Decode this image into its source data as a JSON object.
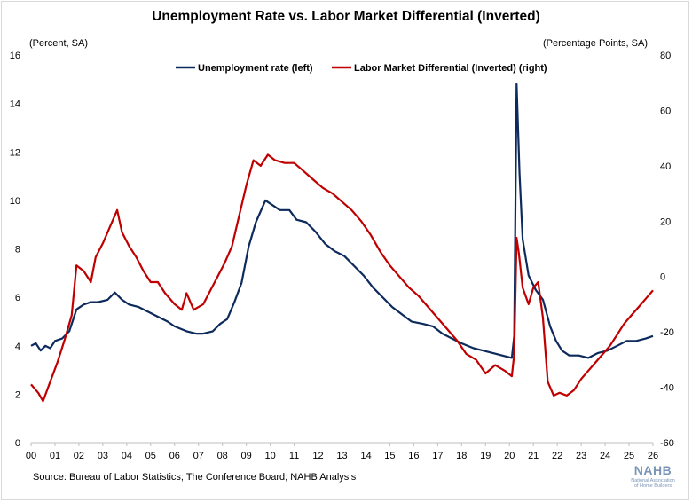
{
  "chart_data": {
    "type": "line",
    "title": "Unemployment Rate vs. Labor Market Differential (Inverted)",
    "ylabel_left": "(Percent, SA)",
    "ylabel_right": "(Percentage Points, SA)",
    "xlabel": "",
    "ylim_left": [
      0,
      16
    ],
    "ylim_right": [
      -60,
      80
    ],
    "yticks_left": [
      "0",
      "2",
      "4",
      "6",
      "8",
      "10",
      "12",
      "14",
      "16"
    ],
    "yticks_right": [
      "-60",
      "-40",
      "-20",
      "0",
      "20",
      "40",
      "60",
      "80"
    ],
    "x_tick_labels": [
      "00",
      "01",
      "02",
      "03",
      "04",
      "05",
      "06",
      "07",
      "08",
      "09",
      "10",
      "11",
      "12",
      "13",
      "14",
      "15",
      "16",
      "17",
      "18",
      "19",
      "20",
      "21",
      "22",
      "23",
      "24",
      "25",
      "26"
    ],
    "xlim": [
      2000,
      2026
    ],
    "legend_position": "top-center",
    "series": [
      {
        "name": "Unemployment rate (left)",
        "axis": "left",
        "color": "#0d2a5c",
        "points": [
          [
            2000,
            4.0
          ],
          [
            2000.2,
            4.1
          ],
          [
            2000.4,
            3.8
          ],
          [
            2000.6,
            4.0
          ],
          [
            2000.8,
            3.9
          ],
          [
            2001,
            4.2
          ],
          [
            2001.3,
            4.3
          ],
          [
            2001.6,
            4.6
          ],
          [
            2001.9,
            5.5
          ],
          [
            2002.2,
            5.7
          ],
          [
            2002.5,
            5.8
          ],
          [
            2002.8,
            5.8
          ],
          [
            2003.2,
            5.9
          ],
          [
            2003.5,
            6.2
          ],
          [
            2003.8,
            5.9
          ],
          [
            2004.1,
            5.7
          ],
          [
            2004.5,
            5.6
          ],
          [
            2004.9,
            5.4
          ],
          [
            2005.3,
            5.2
          ],
          [
            2005.7,
            5.0
          ],
          [
            2006,
            4.8
          ],
          [
            2006.5,
            4.6
          ],
          [
            2006.9,
            4.5
          ],
          [
            2007.2,
            4.5
          ],
          [
            2007.6,
            4.6
          ],
          [
            2007.9,
            4.9
          ],
          [
            2008.2,
            5.1
          ],
          [
            2008.5,
            5.8
          ],
          [
            2008.8,
            6.6
          ],
          [
            2009.1,
            8.1
          ],
          [
            2009.4,
            9.1
          ],
          [
            2009.8,
            10.0
          ],
          [
            2010.1,
            9.8
          ],
          [
            2010.4,
            9.6
          ],
          [
            2010.8,
            9.6
          ],
          [
            2011.1,
            9.2
          ],
          [
            2011.5,
            9.1
          ],
          [
            2011.9,
            8.7
          ],
          [
            2012.3,
            8.2
          ],
          [
            2012.7,
            7.9
          ],
          [
            2013.1,
            7.7
          ],
          [
            2013.5,
            7.3
          ],
          [
            2013.9,
            6.9
          ],
          [
            2014.3,
            6.4
          ],
          [
            2014.7,
            6.0
          ],
          [
            2015.1,
            5.6
          ],
          [
            2015.5,
            5.3
          ],
          [
            2015.9,
            5.0
          ],
          [
            2016.4,
            4.9
          ],
          [
            2016.8,
            4.8
          ],
          [
            2017.2,
            4.5
          ],
          [
            2017.6,
            4.3
          ],
          [
            2018,
            4.1
          ],
          [
            2018.5,
            3.9
          ],
          [
            2018.9,
            3.8
          ],
          [
            2019.3,
            3.7
          ],
          [
            2019.7,
            3.6
          ],
          [
            2020.1,
            3.5
          ],
          [
            2020.2,
            4.4
          ],
          [
            2020.3,
            14.8
          ],
          [
            2020.42,
            11.1
          ],
          [
            2020.55,
            8.4
          ],
          [
            2020.8,
            6.9
          ],
          [
            2021.1,
            6.3
          ],
          [
            2021.4,
            5.9
          ],
          [
            2021.7,
            4.8
          ],
          [
            2021.95,
            4.2
          ],
          [
            2022.2,
            3.8
          ],
          [
            2022.5,
            3.6
          ],
          [
            2022.9,
            3.6
          ],
          [
            2023.3,
            3.5
          ],
          [
            2023.7,
            3.7
          ],
          [
            2024.1,
            3.8
          ],
          [
            2024.5,
            4.0
          ],
          [
            2024.9,
            4.2
          ],
          [
            2025.3,
            4.2
          ],
          [
            2025.7,
            4.3
          ],
          [
            2026,
            4.4
          ]
        ]
      },
      {
        "name": "Labor Market Differential (Inverted) (right)",
        "axis": "right",
        "color": "#c00000",
        "points": [
          [
            2000,
            -39
          ],
          [
            2000.3,
            -42
          ],
          [
            2000.5,
            -45
          ],
          [
            2000.8,
            -38
          ],
          [
            2001.1,
            -31
          ],
          [
            2001.4,
            -23
          ],
          [
            2001.7,
            -14
          ],
          [
            2001.9,
            4
          ],
          [
            2002.2,
            2
          ],
          [
            2002.5,
            -2
          ],
          [
            2002.7,
            7
          ],
          [
            2003,
            12
          ],
          [
            2003.3,
            18
          ],
          [
            2003.6,
            24
          ],
          [
            2003.8,
            16
          ],
          [
            2004.1,
            11
          ],
          [
            2004.4,
            7
          ],
          [
            2004.7,
            2
          ],
          [
            2005,
            -2
          ],
          [
            2005.3,
            -2
          ],
          [
            2005.6,
            -6
          ],
          [
            2006,
            -10
          ],
          [
            2006.3,
            -12
          ],
          [
            2006.5,
            -6
          ],
          [
            2006.8,
            -12
          ],
          [
            2007.2,
            -10
          ],
          [
            2007.5,
            -5
          ],
          [
            2007.8,
            0
          ],
          [
            2008.1,
            5
          ],
          [
            2008.4,
            11
          ],
          [
            2008.7,
            22
          ],
          [
            2009,
            33
          ],
          [
            2009.3,
            42
          ],
          [
            2009.6,
            40
          ],
          [
            2009.9,
            44
          ],
          [
            2010.2,
            42
          ],
          [
            2010.6,
            41
          ],
          [
            2011,
            41
          ],
          [
            2011.4,
            38
          ],
          [
            2011.8,
            35
          ],
          [
            2012.2,
            32
          ],
          [
            2012.6,
            30
          ],
          [
            2013,
            27
          ],
          [
            2013.4,
            24
          ],
          [
            2013.8,
            20
          ],
          [
            2014.2,
            15
          ],
          [
            2014.6,
            9
          ],
          [
            2015,
            4
          ],
          [
            2015.4,
            0
          ],
          [
            2015.8,
            -4
          ],
          [
            2016.2,
            -7
          ],
          [
            2016.6,
            -11
          ],
          [
            2017,
            -15
          ],
          [
            2017.4,
            -19
          ],
          [
            2017.8,
            -23
          ],
          [
            2018.2,
            -28
          ],
          [
            2018.6,
            -30
          ],
          [
            2019,
            -35
          ],
          [
            2019.4,
            -32
          ],
          [
            2019.8,
            -34
          ],
          [
            2020.1,
            -36
          ],
          [
            2020.2,
            -28
          ],
          [
            2020.3,
            14
          ],
          [
            2020.4,
            8
          ],
          [
            2020.55,
            -4
          ],
          [
            2020.8,
            -10
          ],
          [
            2021,
            -4
          ],
          [
            2021.2,
            -2
          ],
          [
            2021.4,
            -15
          ],
          [
            2021.6,
            -38
          ],
          [
            2021.85,
            -43
          ],
          [
            2022.1,
            -42
          ],
          [
            2022.4,
            -43
          ],
          [
            2022.7,
            -41
          ],
          [
            2023,
            -37
          ],
          [
            2023.3,
            -34
          ],
          [
            2023.6,
            -31
          ],
          [
            2023.9,
            -28
          ],
          [
            2024.2,
            -25
          ],
          [
            2024.5,
            -21
          ],
          [
            2024.8,
            -17
          ],
          [
            2025.1,
            -14
          ],
          [
            2025.4,
            -11
          ],
          [
            2025.7,
            -8
          ],
          [
            2026,
            -5
          ]
        ]
      }
    ]
  },
  "source_text": "Source: Bureau of Labor Statistics; The Conference Board; NAHB Analysis",
  "logo": {
    "word": "NAHB",
    "line1": "National Association",
    "line2": "of Home Builders"
  }
}
